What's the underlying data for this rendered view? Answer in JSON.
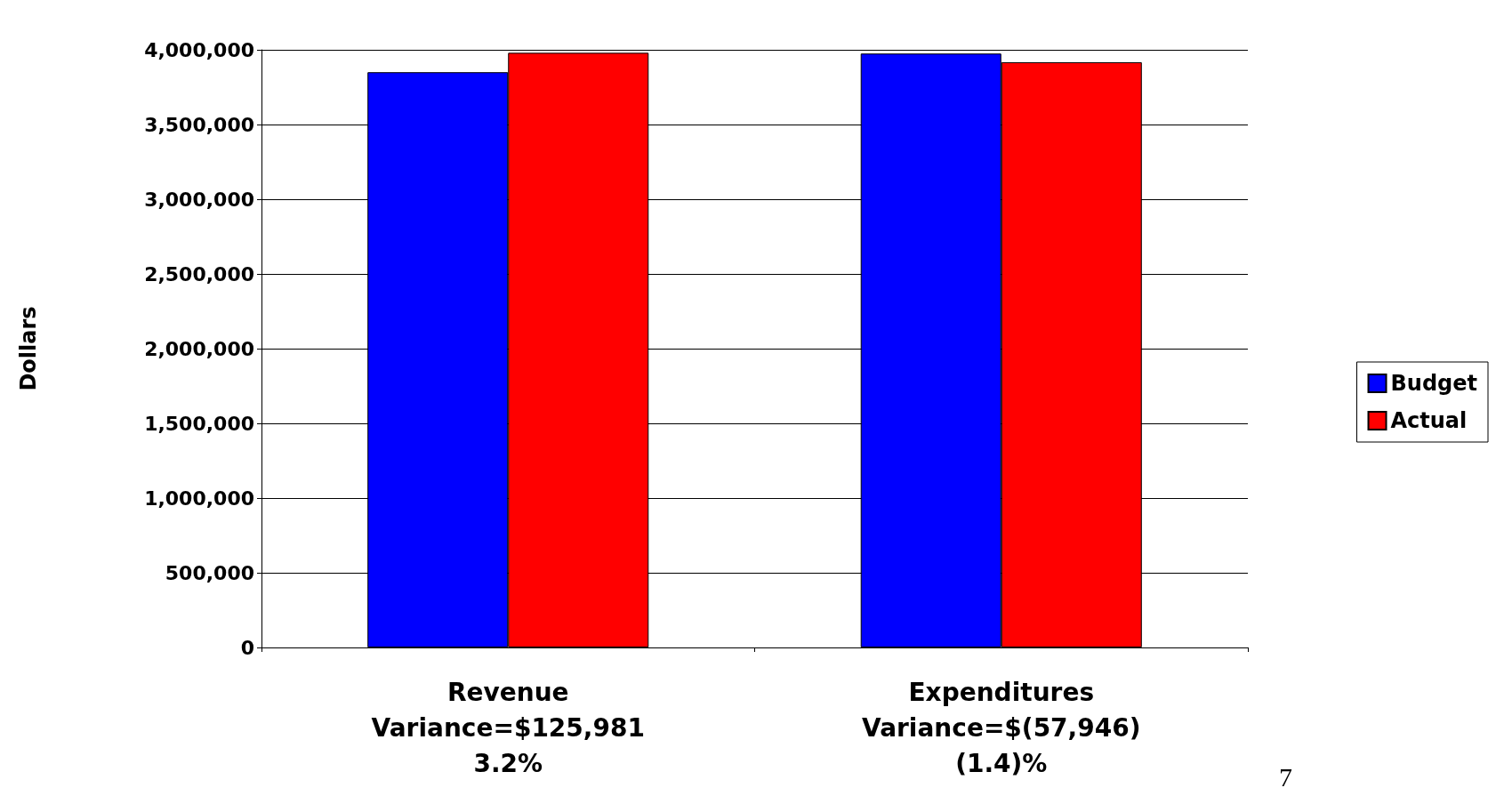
{
  "chart_data": {
    "type": "bar",
    "ylabel": "Dollars",
    "categories": [
      "Revenue\nVariance=$125,981\n3.2%",
      "Expenditures\nVariance=$(57,946)\n(1.4)%"
    ],
    "series": [
      {
        "name": "Budget",
        "color": "#0000ff",
        "values": [
          3850000,
          3975000
        ]
      },
      {
        "name": "Actual",
        "color": "#ff0000",
        "values": [
          3980000,
          3917000
        ]
      }
    ],
    "ylim": [
      0,
      4000000
    ],
    "yticks": [
      0,
      {
        "value": 500000,
        "label": "500,000"
      },
      {
        "value": 1000000,
        "label": "1,000,000"
      },
      {
        "value": 1500000,
        "label": "1,500,000"
      },
      {
        "value": 2000000,
        "label": "2,000,000"
      },
      {
        "value": 2500000,
        "label": "2,500,000"
      },
      {
        "value": 3000000,
        "label": "3,000,000"
      },
      {
        "value": 3500000,
        "label": "3,500,000"
      },
      {
        "value": 4000000,
        "label": "4,000,000"
      }
    ],
    "grid": "y",
    "legend": "right",
    "annotations": [
      "7"
    ]
  }
}
